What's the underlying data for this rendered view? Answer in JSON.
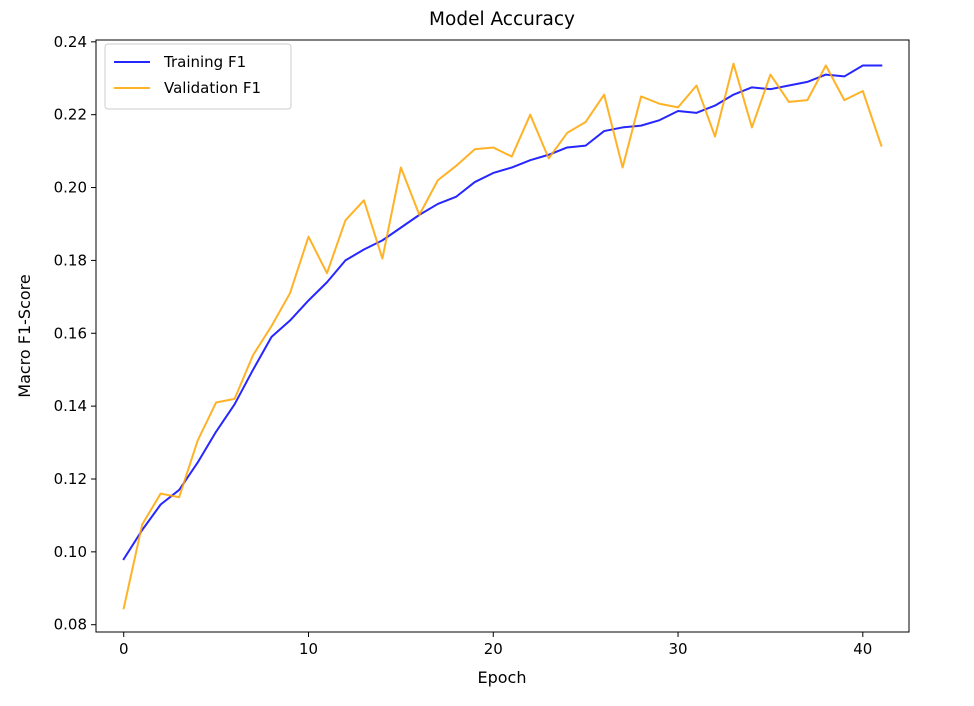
{
  "chart_data": {
    "type": "line",
    "title": "Model Accuracy",
    "xlabel": "Epoch",
    "ylabel": "Macro F1-Score",
    "xlim": [
      -1.5,
      42.5
    ],
    "ylim": [
      0.078,
      0.2405
    ],
    "xticks": [
      0,
      10,
      20,
      30,
      40
    ],
    "yticks": [
      0.08,
      0.1,
      0.12,
      0.14,
      0.16,
      0.18,
      0.2,
      0.22,
      0.24
    ],
    "grid": false,
    "legend": "top-left",
    "x": [
      0,
      1,
      2,
      3,
      4,
      5,
      6,
      7,
      8,
      9,
      10,
      11,
      12,
      13,
      14,
      15,
      16,
      17,
      18,
      19,
      20,
      21,
      22,
      23,
      24,
      25,
      26,
      27,
      28,
      29,
      30,
      31,
      32,
      33,
      34,
      35,
      36,
      37,
      38,
      39,
      40,
      41
    ],
    "series": [
      {
        "name": "Training F1",
        "color": "#0000ff",
        "values": [
          0.098,
          0.106,
          0.113,
          0.117,
          0.1245,
          0.133,
          0.1405,
          0.15,
          0.159,
          0.1635,
          0.169,
          0.174,
          0.18,
          0.183,
          0.1855,
          0.189,
          0.1925,
          0.1955,
          0.1975,
          0.2015,
          0.204,
          0.2055,
          0.2075,
          0.209,
          0.211,
          0.2115,
          0.2155,
          0.2165,
          0.217,
          0.2185,
          0.221,
          0.2205,
          0.2225,
          0.2255,
          0.2275,
          0.227,
          0.228,
          0.229,
          0.231,
          0.2305,
          0.2335,
          0.2335
        ]
      },
      {
        "name": "Validation F1",
        "color": "#ffa500",
        "values": [
          0.0845,
          0.1075,
          0.116,
          0.115,
          0.1305,
          0.141,
          0.142,
          0.154,
          0.162,
          0.171,
          0.1865,
          0.1765,
          0.191,
          0.1965,
          0.1805,
          0.2055,
          0.1925,
          0.202,
          0.206,
          0.2105,
          0.211,
          0.2085,
          0.22,
          0.208,
          0.215,
          0.218,
          0.2255,
          0.2055,
          0.225,
          0.223,
          0.222,
          0.228,
          0.214,
          0.234,
          0.2165,
          0.231,
          0.2235,
          0.224,
          0.2335,
          0.224,
          0.2265,
          0.2115
        ]
      }
    ]
  }
}
